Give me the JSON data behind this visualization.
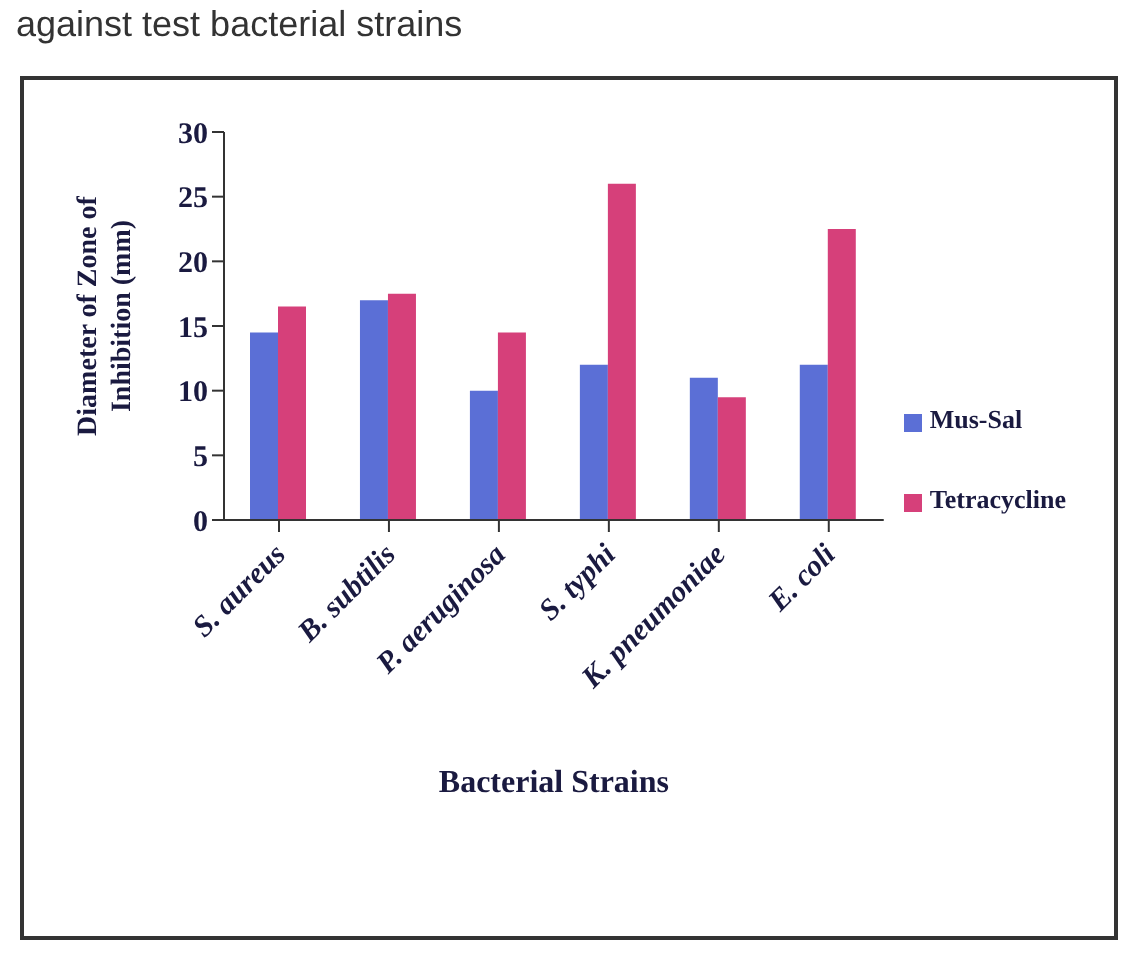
{
  "chart_data": {
    "type": "bar",
    "xlabel": "Bacterial Strains",
    "ylabel": "Diameter of Zone of Inhibition (mm)",
    "annotations": [
      "against test bacterial strains"
    ],
    "categories": [
      "S. aureus",
      "B. subtilis",
      "P. aeruginosa",
      "S. typhi",
      "K. pneumoniae",
      "E. coli"
    ],
    "series": [
      {
        "name": "Mus-Sal",
        "color": "#5b6fd6",
        "values": [
          14.5,
          17,
          10,
          12,
          11,
          12
        ]
      },
      {
        "name": "Tetracycline",
        "color": "#d6407a",
        "values": [
          16.5,
          17.5,
          14.5,
          26,
          9.5,
          22.5
        ]
      }
    ],
    "ylim": [
      0,
      30
    ],
    "yticks": [
      0,
      5,
      10,
      15,
      20,
      25,
      30
    ],
    "grid": false,
    "legend": "right"
  }
}
